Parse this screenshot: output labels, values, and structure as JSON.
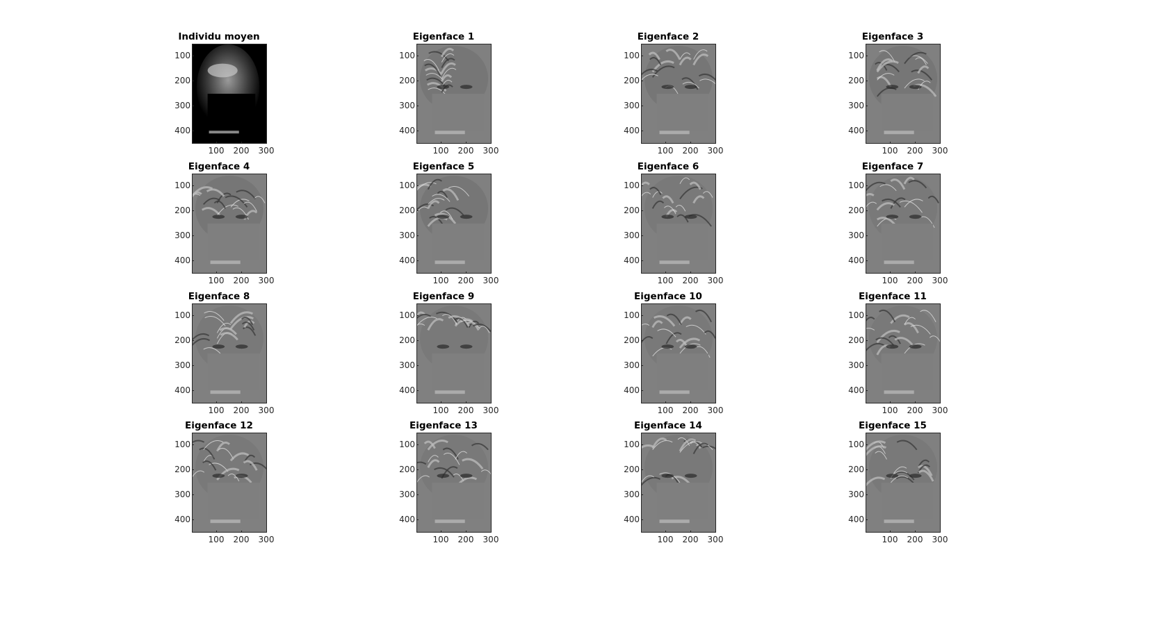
{
  "figure": {
    "panels": [
      {
        "title": "Individu moyen",
        "kind": "mean"
      },
      {
        "title": "Eigenface 1",
        "kind": "eig"
      },
      {
        "title": "Eigenface 2",
        "kind": "eig"
      },
      {
        "title": "Eigenface 3",
        "kind": "eig"
      },
      {
        "title": "Eigenface 4",
        "kind": "eig"
      },
      {
        "title": "Eigenface 5",
        "kind": "eig"
      },
      {
        "title": "Eigenface 6",
        "kind": "eig"
      },
      {
        "title": "Eigenface 7",
        "kind": "eig"
      },
      {
        "title": "Eigenface 8",
        "kind": "eig"
      },
      {
        "title": "Eigenface 9",
        "kind": "eig"
      },
      {
        "title": "Eigenface 10",
        "kind": "eig"
      },
      {
        "title": "Eigenface 11",
        "kind": "eig"
      },
      {
        "title": "Eigenface 12",
        "kind": "eig"
      },
      {
        "title": "Eigenface 13",
        "kind": "eig"
      },
      {
        "title": "Eigenface 14",
        "kind": "eig"
      },
      {
        "title": "Eigenface 15",
        "kind": "eig"
      }
    ],
    "y_ticks": [
      "100",
      "200",
      "300",
      "400"
    ],
    "x_ticks": [
      "100",
      "200",
      "300"
    ],
    "colors": {
      "mean_background": "#000000",
      "eig_background": "#808080",
      "axis": "#262626"
    }
  }
}
